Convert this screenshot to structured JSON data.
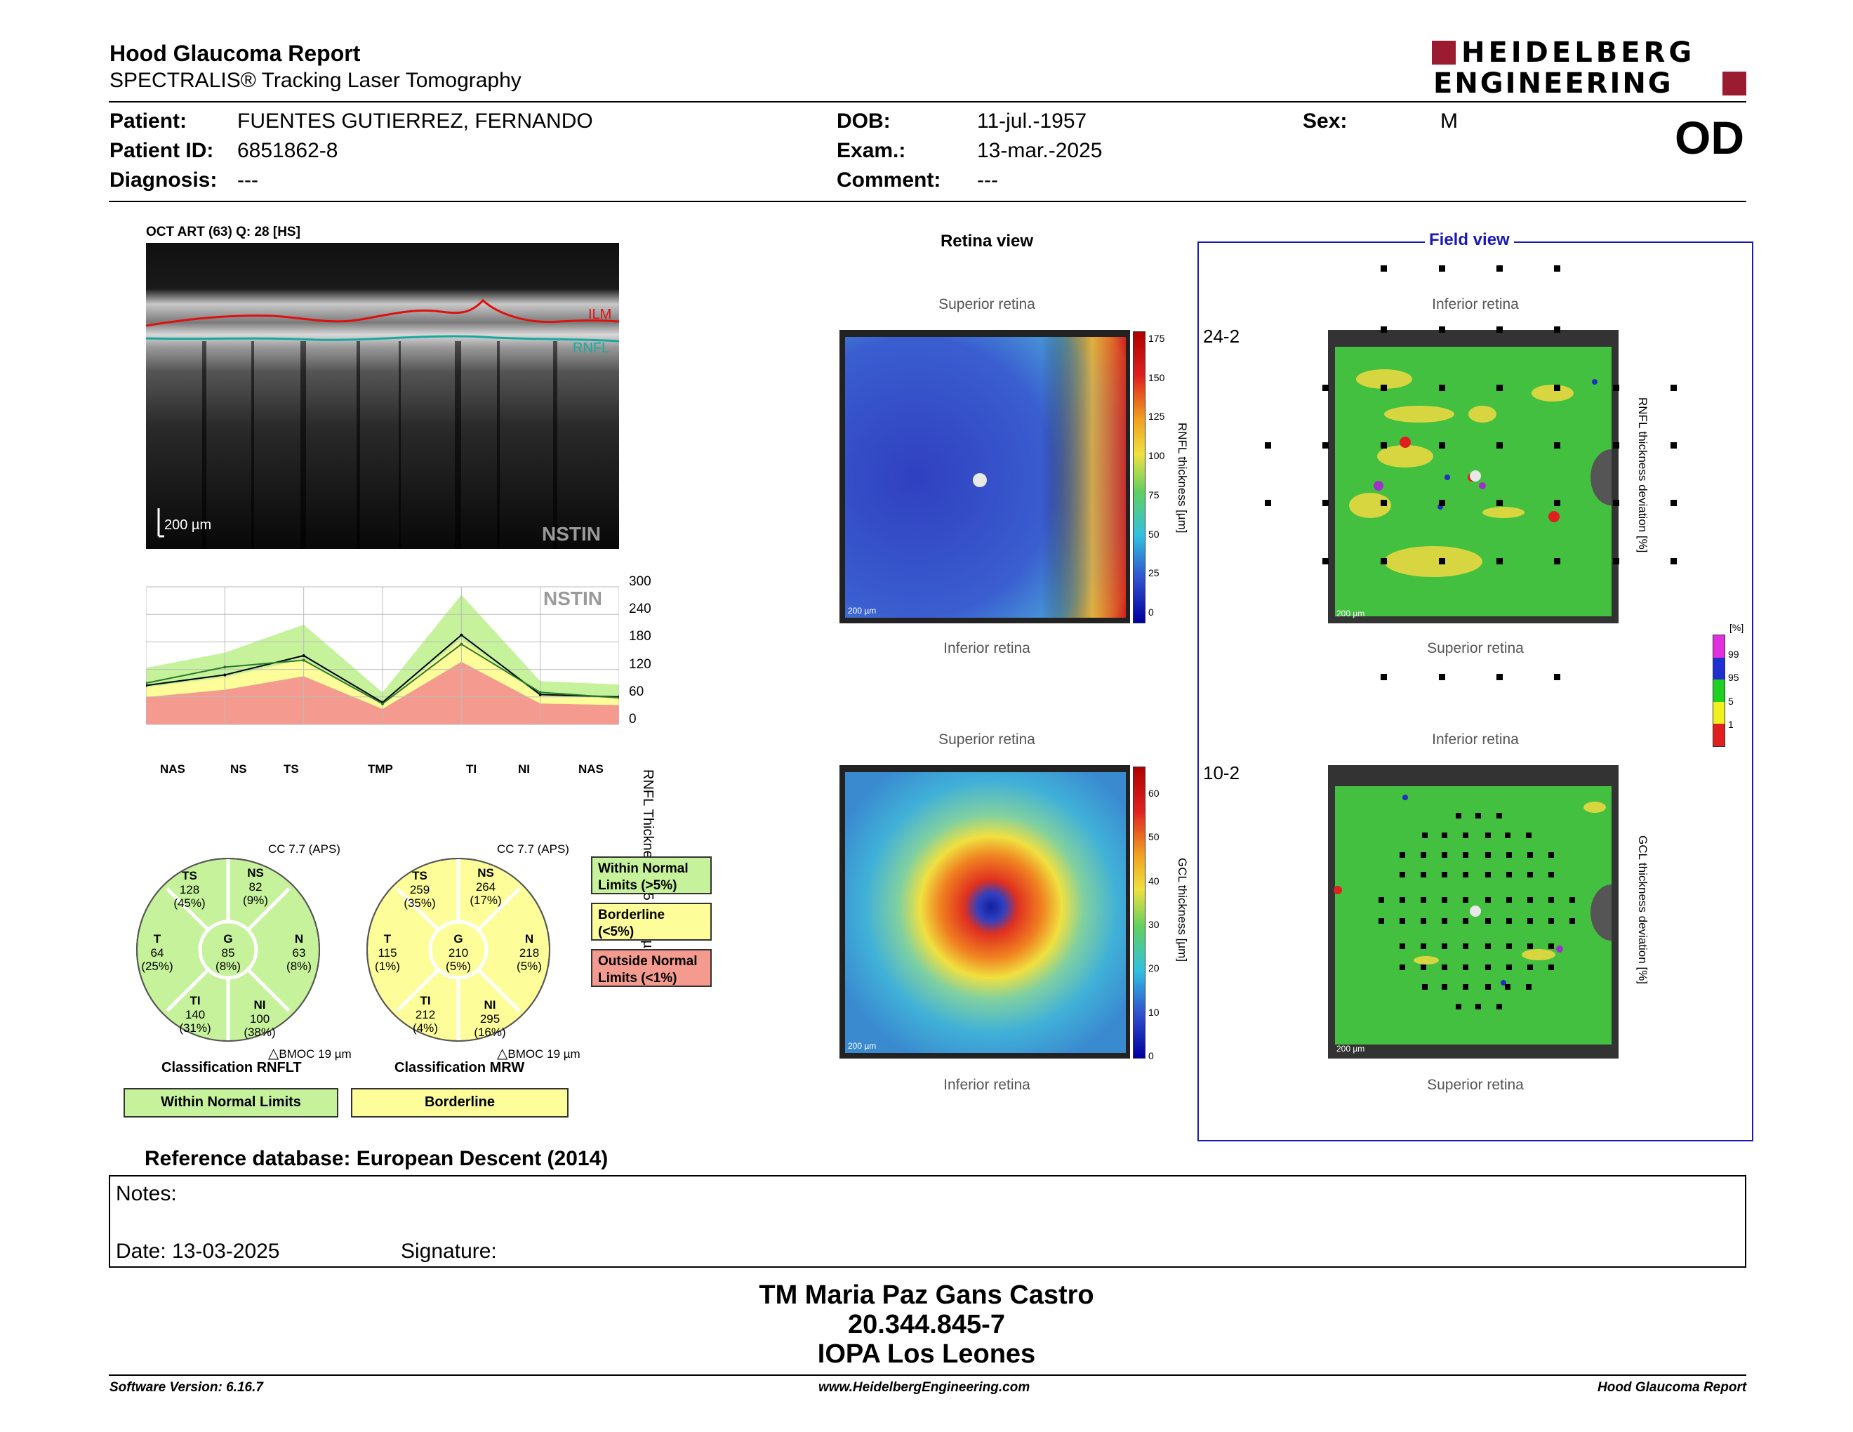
{
  "header": {
    "title": "Hood Glaucoma Report",
    "subtitle": "SPECTRALIS® Tracking Laser Tomography",
    "logo_line1": "HEIDELBERG",
    "logo_line2": "ENGINEERING",
    "eye": "OD"
  },
  "patient": {
    "patient_label": "Patient:",
    "patient_value": "FUENTES GUTIERREZ, FERNANDO",
    "id_label": "Patient ID:",
    "id_value": "6851862-8",
    "diag_label": "Diagnosis:",
    "diag_value": "---",
    "dob_label": "DOB:",
    "dob_value": "11-jul.-1957",
    "exam_label": "Exam.:",
    "exam_value": "13-mar.-2025",
    "comment_label": "Comment:",
    "comment_value": "---",
    "sex_label": "Sex:",
    "sex_value": "M"
  },
  "oct": {
    "caption": "OCT ART (63) Q: 28 [HS]",
    "ilm": "ILM",
    "rnfl": "RNFL",
    "scale": "200 µm",
    "nstin": "NSTIN"
  },
  "profile": {
    "nstin": "NSTIN",
    "ylabel": "RNFL Thickness (3.5 mm) [µm]",
    "yticks": [
      "300",
      "240",
      "180",
      "120",
      "60",
      "0"
    ],
    "xlabels": [
      "NAS",
      "NS",
      "TS",
      "TMP",
      "TI",
      "NI",
      "NAS"
    ]
  },
  "chart_data": {
    "type": "line",
    "title": "",
    "xlabel": "",
    "ylabel": "RNFL Thickness (3.5 mm) [µm]",
    "ylim": [
      0,
      300
    ],
    "categories": [
      "NAS",
      "NS",
      "TS",
      "TMP",
      "TI",
      "NI",
      "NAS"
    ],
    "series": [
      {
        "values": [
          85,
          108,
          150,
          48,
          195,
          65,
          60
        ]
      },
      {
        "values": [
          90,
          125,
          140,
          45,
          175,
          70,
          58
        ]
      }
    ]
  },
  "rnflt_chart": {
    "cc": "CC 7.7 (APS)",
    "bmo": "BMOC 19 µm",
    "classification_label": "Classification RNFLT",
    "result": "Within Normal Limits",
    "sectors": {
      "TS": {
        "name": "TS",
        "value": "128",
        "pct": "(45%)"
      },
      "NS": {
        "name": "NS",
        "value": "82",
        "pct": "(9%)"
      },
      "T": {
        "name": "T",
        "value": "64",
        "pct": "(25%)"
      },
      "G": {
        "name": "G",
        "value": "85",
        "pct": "(8%)"
      },
      "N": {
        "name": "N",
        "value": "63",
        "pct": "(8%)"
      },
      "TI": {
        "name": "TI",
        "value": "140",
        "pct": "(31%)"
      },
      "NI": {
        "name": "NI",
        "value": "100",
        "pct": "(38%)"
      }
    }
  },
  "mrw_chart": {
    "cc": "CC 7.7 (APS)",
    "bmo": "BMOC 19 µm",
    "classification_label": "Classification MRW",
    "result": "Borderline",
    "sectors": {
      "TS": {
        "name": "TS",
        "value": "259",
        "pct": "(35%)"
      },
      "NS": {
        "name": "NS",
        "value": "264",
        "pct": "(17%)"
      },
      "T": {
        "name": "T",
        "value": "115",
        "pct": "(1%)"
      },
      "G": {
        "name": "G",
        "value": "210",
        "pct": "(5%)"
      },
      "N": {
        "name": "N",
        "value": "218",
        "pct": "(5%)"
      },
      "TI": {
        "name": "TI",
        "value": "212",
        "pct": "(4%)"
      },
      "NI": {
        "name": "NI",
        "value": "295",
        "pct": "(16%)"
      }
    }
  },
  "legend": {
    "within_line1": "Within Normal",
    "within_line2": "Limits (>5%)",
    "border_line1": "Borderline",
    "border_line2": "(<5%)",
    "outside_line1": "Outside Normal",
    "outside_line2": "Limits (<1%)"
  },
  "retina": {
    "title": "Retina view",
    "superior": "Superior retina",
    "inferior": "Inferior retina",
    "scale": "200 µm",
    "rnfl_axis_label": "RNFL thickness [µm]",
    "rnfl_ticks": [
      "175",
      "150",
      "125",
      "100",
      "75",
      "50",
      "25",
      "0"
    ],
    "gcl_axis_label": "GCL thickness [µm]",
    "gcl_ticks": [
      "60",
      "50",
      "40",
      "30",
      "20",
      "10",
      "0"
    ]
  },
  "field": {
    "title": "Field view",
    "label_242": "24-2",
    "label_102": "10-2",
    "inferior": "Inferior retina",
    "superior": "Superior retina",
    "rnfl_dev_label": "RNFL thickness deviation [%]",
    "gcl_dev_label": "GCL thickness deviation [%]",
    "pct_label": "[%]",
    "pct_ticks": [
      "99",
      "95",
      "5",
      "1"
    ]
  },
  "colors": {
    "green": "#c5f29a",
    "yellow": "#fdfd9a",
    "red": "#f59a8f",
    "logo_red": "#9b1b30",
    "field_border": "#1a1ab8"
  },
  "reference": "Reference database: European Descent (2014)",
  "notes": {
    "notes_label": "Notes:",
    "date_label": "Date: 13-03-2025",
    "signature_label": "Signature:"
  },
  "signature_block": {
    "name": "TM Maria Paz Gans Castro",
    "id": "20.344.845-7",
    "org": "IOPA Los Leones"
  },
  "footer": {
    "software": "Software Version: 6.16.7",
    "website": "www.HeidelbergEngineering.com",
    "report": "Hood Glaucoma Report"
  }
}
